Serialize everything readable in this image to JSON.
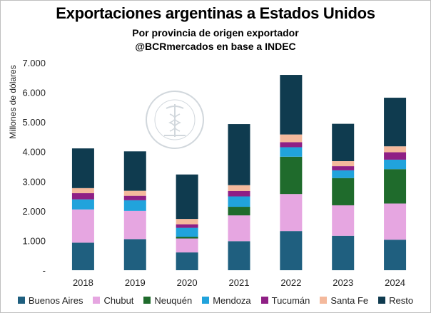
{
  "header": {
    "title": "Exportaciones argentinas a Estados Unidos",
    "subtitle": "Por provincia de origen exportador",
    "source": "@BCRmercados en base a INDEC"
  },
  "watermark": {
    "text": "BOLSA DE COMERCIO DE ROSARIO",
    "icon": "caduceus-seal-icon"
  },
  "chart_data": {
    "type": "bar",
    "stacked": true,
    "title": "Exportaciones argentinas a Estados Unidos",
    "subtitle": "Por provincia de origen exportador",
    "ylabel": "Millones de dólares",
    "xlabel": "",
    "ylim": [
      0,
      7000
    ],
    "yticks": [
      0,
      1000,
      2000,
      3000,
      4000,
      5000,
      6000,
      7000
    ],
    "ytick_labels": [
      "-",
      "1.000",
      "2.000",
      "3.000",
      "4.000",
      "5.000",
      "6.000",
      "7.000"
    ],
    "grid": false,
    "legend_position": "bottom",
    "categories": [
      "2018",
      "2019",
      "2020",
      "2021",
      "2022",
      "2023",
      "2024"
    ],
    "series": [
      {
        "name": "Buenos Aires",
        "color": "#1f5f7f",
        "values": [
          930,
          1050,
          600,
          980,
          1320,
          1160,
          1030
        ]
      },
      {
        "name": "Chubut",
        "color": "#e6a6e1",
        "values": [
          1120,
          950,
          470,
          870,
          1250,
          1030,
          1220
        ]
      },
      {
        "name": "Neuquén",
        "color": "#1f6b2c",
        "values": [
          0,
          0,
          60,
          290,
          1260,
          920,
          1160
        ]
      },
      {
        "name": "Mendoza",
        "color": "#21a3dc",
        "values": [
          340,
          360,
          300,
          350,
          320,
          260,
          320
        ]
      },
      {
        "name": "Tucumán",
        "color": "#8f1f85",
        "values": [
          210,
          150,
          120,
          180,
          170,
          140,
          250
        ]
      },
      {
        "name": "Santa Fe",
        "color": "#f4b99c",
        "values": [
          170,
          170,
          180,
          200,
          260,
          170,
          200
        ]
      },
      {
        "name": "Resto",
        "color": "#0f3b4f",
        "values": [
          1340,
          1330,
          1500,
          2060,
          2010,
          1260,
          1640
        ]
      }
    ]
  }
}
